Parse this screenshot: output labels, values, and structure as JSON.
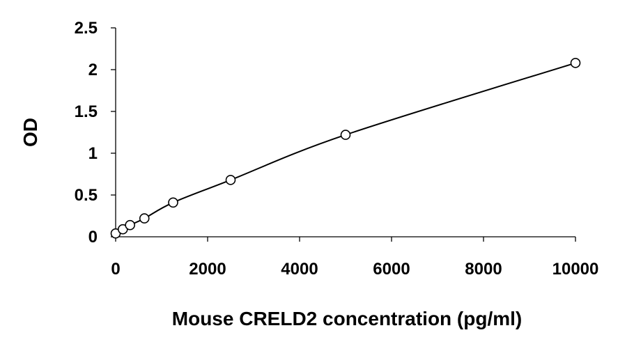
{
  "chart_data": {
    "type": "scatter",
    "xlabel": "Mouse CRELD2 concentration (pg/ml)",
    "ylabel": "OD",
    "xlim": [
      0,
      10000
    ],
    "ylim": [
      0,
      2.5
    ],
    "x_ticks": [
      0,
      2000,
      4000,
      6000,
      8000,
      10000
    ],
    "y_ticks": [
      0,
      0.5,
      1,
      1.5,
      2,
      2.5
    ],
    "x_tick_labels": [
      "0",
      "2000",
      "4000",
      "6000",
      "8000",
      "10000"
    ],
    "y_tick_labels": [
      "0",
      "0.5",
      "1",
      "1.5",
      "2",
      "2.5"
    ],
    "grid": false,
    "legend": false,
    "trendline": "smooth",
    "series": [
      {
        "points": [
          {
            "x": 0,
            "y": 0.04
          },
          {
            "x": 156,
            "y": 0.09
          },
          {
            "x": 313,
            "y": 0.14
          },
          {
            "x": 625,
            "y": 0.22
          },
          {
            "x": 1250,
            "y": 0.41
          },
          {
            "x": 2500,
            "y": 0.68
          },
          {
            "x": 5000,
            "y": 1.22
          },
          {
            "x": 10000,
            "y": 2.08
          }
        ]
      }
    ]
  }
}
